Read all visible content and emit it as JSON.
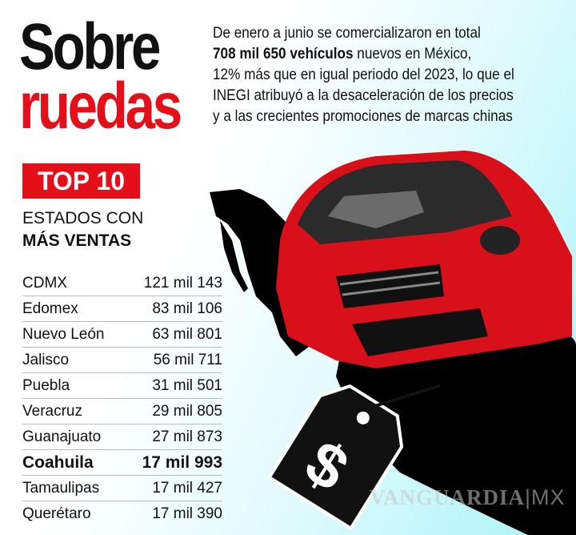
{
  "title": {
    "line1": "Sobre",
    "line2": "ruedas"
  },
  "intro": {
    "before": "De enero a junio se comercializaron en total",
    "bold": "708 mil 650 vehículos",
    "after_bold": " nuevos en México,",
    "line3": "12% más que en igual periodo del 2023, lo que el",
    "line4": "INEGI atribuyó a la desaceleración de los precios",
    "line5": "y a las crecientes promociones de marcas chinas"
  },
  "badge": "TOP 10",
  "subtitle": {
    "line1": "ESTADOS CON",
    "line2": "MÁS VENTAS"
  },
  "table": [
    {
      "state": "CDMX",
      "sales": "121 mil 143"
    },
    {
      "state": "Edomex",
      "sales": "83 mil 106"
    },
    {
      "state": "Nuevo León",
      "sales": "63 mil 801"
    },
    {
      "state": "Jalisco",
      "sales": "56 mil 711"
    },
    {
      "state": "Puebla",
      "sales": "31 mil 501"
    },
    {
      "state": "Veracruz",
      "sales": "29 mil 805"
    },
    {
      "state": "Guanajuato",
      "sales": "27 mil 873"
    },
    {
      "state": "Coahuila",
      "sales": "17 mil 993",
      "highlighted": true
    },
    {
      "state": "Tamaulipas",
      "sales": "17 mil 427"
    },
    {
      "state": "Querétaro",
      "sales": "17 mil 390"
    }
  ],
  "price_tag_symbol": "$",
  "watermark": {
    "brand": "VANGUARDIA",
    "suffix": "|MX"
  },
  "colors": {
    "accent": "#e3101a",
    "text": "#111111",
    "background": "#a9f3f8"
  }
}
